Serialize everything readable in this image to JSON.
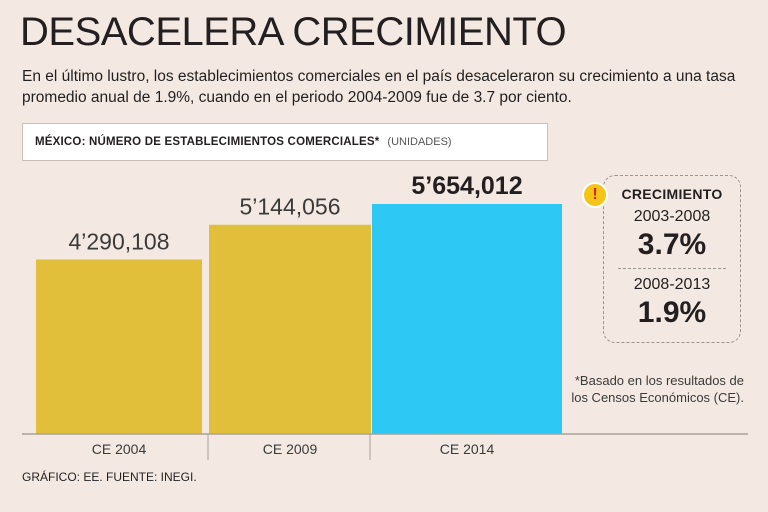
{
  "title": "DESACELERA CRECIMIENTO",
  "subtitle": "En el último lustro, los establecimientos comerciales en el país desaceleraron su crecimiento a una tasa promedio anual de 1.9%, cuando en el periodo 2004-2009 fue de 3.7 por ciento.",
  "chart_header": {
    "main": "MÉXICO: NÚMERO DE ESTABLECIMIENTOS COMERCIALES*",
    "unit": "(UNIDADES)"
  },
  "chart_data": {
    "type": "bar",
    "title": "MÉXICO: NÚMERO DE ESTABLECIMIENTOS COMERCIALES*",
    "ylabel": "(UNIDADES)",
    "xlabel": "",
    "categories": [
      "CE 2004",
      "CE 2009",
      "CE 2014"
    ],
    "values": [
      4290108,
      5144056,
      5654012
    ],
    "value_labels": [
      "4’290,108",
      "5’144,056",
      "5’654,012"
    ],
    "highlight_index": 2,
    "ylim": [
      0,
      6000000
    ],
    "colors": [
      "#e1bf3a",
      "#e1bf3a",
      "#2ec8f5"
    ],
    "grid": false
  },
  "growth": {
    "title": "CRECIMIENTO",
    "periods": [
      {
        "period": "2003-2008",
        "value": "3.7%"
      },
      {
        "period": "2008-2013",
        "value": "1.9%"
      }
    ],
    "icon": "exclamation-icon",
    "icon_color": "#f4c517",
    "icon_mark_color": "#e2231a"
  },
  "footnote": "*Basado en los resultados de los Censos Económicos (CE).",
  "source": "GRÁFICO: EE. FUENTE: INEGI."
}
